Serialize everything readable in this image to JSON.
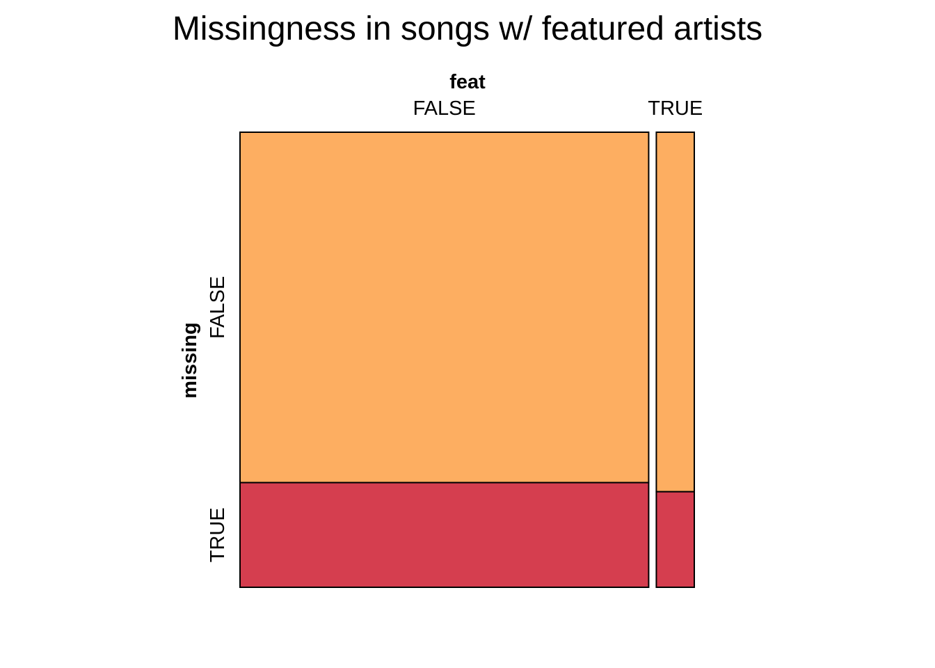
{
  "chart_data": {
    "type": "mosaic",
    "title": "Missingness in songs w/ featured artists",
    "x_variable": "feat",
    "y_variable": "missing",
    "x_categories": [
      "FALSE",
      "TRUE"
    ],
    "y_categories": [
      "FALSE",
      "TRUE"
    ],
    "x_proportions": [
      0.915,
      0.085
    ],
    "cells": [
      {
        "x": "FALSE",
        "y_proportions": [
          0.77,
          0.23
        ]
      },
      {
        "x": "TRUE",
        "y_proportions": [
          0.79,
          0.21
        ]
      }
    ],
    "colors": {
      "FALSE": "#FDAE61",
      "TRUE": "#D53E4F"
    },
    "grid": false,
    "legend": "none"
  }
}
